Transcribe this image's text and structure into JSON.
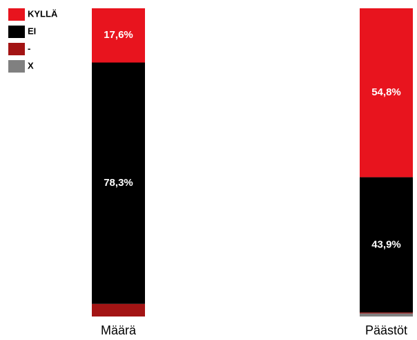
{
  "chart_data": {
    "type": "stacked_bar",
    "categories": [
      "Määrä",
      "Päästöt"
    ],
    "series": [
      {
        "name": "KYLLÄ",
        "color": "#e8141e",
        "values": [
          17.6,
          54.8
        ],
        "value_labels": [
          "17,6%",
          "54,8%"
        ]
      },
      {
        "name": "EI",
        "color": "#000000",
        "values": [
          78.3,
          43.9
        ],
        "value_labels": [
          "78,3%",
          "43,9%"
        ]
      },
      {
        "name": "-",
        "color": "#a31414",
        "values": [
          4.1,
          0.3
        ]
      },
      {
        "name": "X",
        "color": "#808080",
        "values": [
          0,
          1.0
        ]
      }
    ],
    "ylim": [
      0,
      100
    ],
    "legend": "top-left"
  }
}
